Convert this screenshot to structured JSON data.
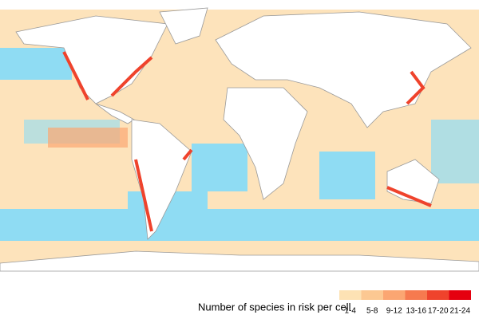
{
  "legend": {
    "title": "Number of species in risk per cell",
    "items": [
      {
        "label": "1-4",
        "color": "#fde2b4"
      },
      {
        "label": "5-8",
        "color": "#fcc892"
      },
      {
        "label": "9-12",
        "color": "#fba672"
      },
      {
        "label": "13-16",
        "color": "#f67a4f"
      },
      {
        "label": "17-20",
        "color": "#ef432c"
      },
      {
        "label": "21-24",
        "color": "#e5000f"
      }
    ]
  }
}
